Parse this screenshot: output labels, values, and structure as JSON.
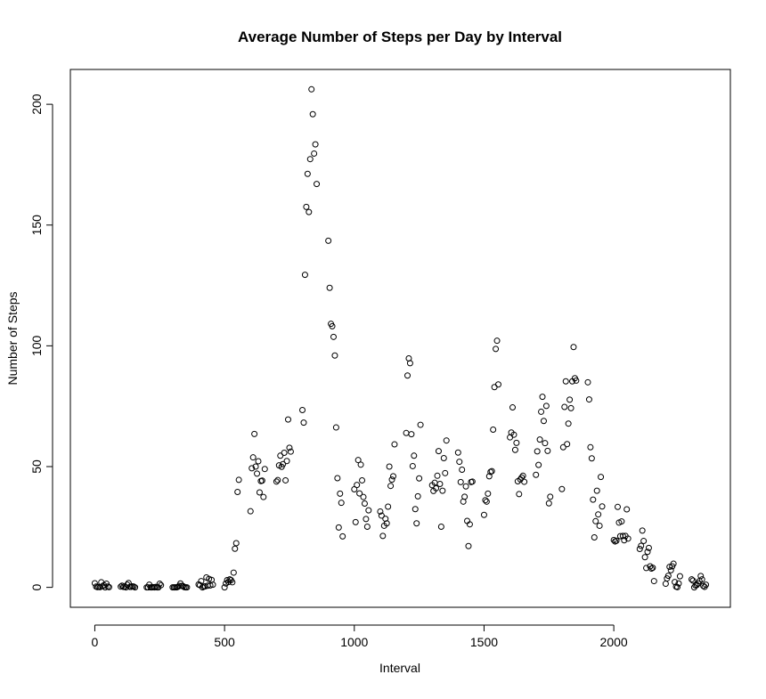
{
  "chart_data": {
    "type": "scatter",
    "title": "Average Number of Steps per Day by Interval",
    "x_label": "Interval",
    "y_label": "Number of Steps",
    "xlim": [
      -94.2,
      2449.2
    ],
    "ylim": [
      -8.25,
      214.42
    ],
    "xticks": [
      0,
      500,
      1000,
      1500,
      2000
    ],
    "yticks": [
      0,
      50,
      100,
      150,
      200
    ],
    "color": "#000000",
    "x": [
      0,
      5,
      10,
      15,
      20,
      25,
      30,
      35,
      40,
      45,
      50,
      55,
      100,
      105,
      110,
      115,
      120,
      125,
      130,
      135,
      140,
      145,
      150,
      155,
      200,
      205,
      210,
      215,
      220,
      225,
      230,
      235,
      240,
      245,
      250,
      255,
      300,
      305,
      310,
      315,
      320,
      325,
      330,
      335,
      340,
      345,
      350,
      355,
      400,
      405,
      410,
      415,
      420,
      425,
      430,
      435,
      440,
      445,
      450,
      455,
      500,
      505,
      510,
      515,
      520,
      525,
      530,
      535,
      540,
      545,
      550,
      555,
      600,
      605,
      610,
      615,
      620,
      625,
      630,
      635,
      640,
      645,
      650,
      655,
      700,
      705,
      710,
      715,
      720,
      725,
      730,
      735,
      740,
      745,
      750,
      755,
      800,
      805,
      810,
      815,
      820,
      825,
      830,
      835,
      840,
      845,
      850,
      855,
      900,
      905,
      910,
      915,
      920,
      925,
      930,
      935,
      940,
      945,
      950,
      955,
      1000,
      1005,
      1010,
      1015,
      1020,
      1025,
      1030,
      1035,
      1040,
      1045,
      1050,
      1055,
      1100,
      1105,
      1110,
      1115,
      1120,
      1125,
      1130,
      1135,
      1140,
      1145,
      1150,
      1155,
      1200,
      1205,
      1210,
      1215,
      1220,
      1225,
      1230,
      1235,
      1240,
      1245,
      1250,
      1255,
      1300,
      1305,
      1310,
      1315,
      1320,
      1325,
      1330,
      1335,
      1340,
      1345,
      1350,
      1355,
      1400,
      1405,
      1410,
      1415,
      1420,
      1425,
      1430,
      1435,
      1440,
      1445,
      1450,
      1455,
      1500,
      1505,
      1510,
      1515,
      1520,
      1525,
      1530,
      1535,
      1540,
      1545,
      1550,
      1555,
      1600,
      1605,
      1610,
      1615,
      1620,
      1625,
      1630,
      1635,
      1640,
      1645,
      1650,
      1655,
      1700,
      1705,
      1710,
      1715,
      1720,
      1725,
      1730,
      1735,
      1740,
      1745,
      1750,
      1755,
      1800,
      1805,
      1810,
      1815,
      1820,
      1825,
      1830,
      1835,
      1840,
      1845,
      1850,
      1855,
      1900,
      1905,
      1910,
      1915,
      1920,
      1925,
      1930,
      1935,
      1940,
      1945,
      1950,
      1955,
      2000,
      2005,
      2010,
      2015,
      2020,
      2025,
      2030,
      2035,
      2040,
      2045,
      2050,
      2055,
      2100,
      2105,
      2110,
      2115,
      2120,
      2125,
      2130,
      2135,
      2140,
      2145,
      2150,
      2155,
      2200,
      2205,
      2210,
      2215,
      2220,
      2225,
      2230,
      2235,
      2240,
      2245,
      2250,
      2255,
      2300,
      2305,
      2310,
      2315,
      2320,
      2325,
      2330,
      2335,
      2340,
      2345,
      2350,
      2355
    ],
    "values": [
      1.7,
      0.3,
      0.1,
      0.2,
      0.1,
      2.1,
      0.5,
      0.9,
      0,
      1.5,
      0.3,
      0.1,
      0.3,
      0.7,
      0.2,
      0.3,
      0,
      1.1,
      1.8,
      0.2,
      0.2,
      0.4,
      0.3,
      0,
      0,
      0,
      1.1,
      0,
      0,
      0.1,
      0,
      0.2,
      0,
      0,
      1.5,
      0.9,
      0,
      0,
      0,
      0,
      0.2,
      0.6,
      1.6,
      0.6,
      0.5,
      0.1,
      0,
      0,
      1.2,
      0.9,
      2.6,
      0,
      0.3,
      0.4,
      4.1,
      0.7,
      3.5,
      0.8,
      3.1,
      1.1,
      0,
      1.6,
      3,
      2.2,
      3.3,
      3,
      2.1,
      6.1,
      16,
      18.3,
      39.5,
      44.5,
      31.5,
      49.3,
      53.8,
      63.5,
      50,
      47.1,
      52.2,
      39.3,
      44,
      44.2,
      37.4,
      49,
      43.8,
      44.4,
      50.5,
      54.5,
      49.9,
      51,
      55.7,
      44.3,
      52.3,
      69.5,
      57.8,
      56.2,
      73.4,
      68.2,
      129.4,
      157.5,
      171.2,
      155.4,
      177.3,
      206.2,
      195.9,
      179.6,
      183.4,
      167,
      143.5,
      124,
      109.1,
      108.1,
      103.7,
      96,
      66.2,
      45.2,
      24.8,
      38.8,
      35,
      21.1,
      40.6,
      27,
      42.4,
      52.7,
      38.9,
      50.8,
      44.3,
      37.4,
      34.7,
      28.3,
      25.1,
      31.9,
      31.4,
      29.7,
      21.3,
      25.5,
      28.4,
      26.5,
      33.4,
      50,
      42,
      44.6,
      46,
      59.2,
      63.9,
      87.7,
      94.8,
      92.8,
      63.4,
      50.2,
      54.5,
      32.4,
      26.5,
      37.7,
      45.1,
      67.3,
      42.3,
      39.9,
      43.3,
      41,
      46.2,
      56.4,
      42.8,
      25.1,
      40,
      53.5,
      47.3,
      60.8,
      55.8,
      52,
      43.6,
      48.7,
      35.5,
      37.5,
      41.8,
      27.5,
      17.1,
      26.1,
      43.6,
      43.8,
      30,
      36.1,
      35.5,
      38.8,
      46,
      47.8,
      48.1,
      65.3,
      82.9,
      98.7,
      102.1,
      84,
      62.1,
      64.1,
      74.5,
      63.2,
      56.9,
      59.8,
      43.9,
      38.6,
      44.7,
      45.5,
      46.2,
      43.7,
      46.6,
      56.3,
      50.7,
      61.2,
      72.7,
      78.9,
      68.9,
      59.7,
      75.1,
      56.5,
      34.8,
      37.5,
      40.7,
      58,
      74.7,
      85.3,
      59.3,
      67.8,
      77.7,
      74.2,
      85.3,
      99.5,
      86.6,
      85.6,
      84.9,
      77.8,
      58,
      53.4,
      36.3,
      20.7,
      27.4,
      40,
      30.2,
      25.5,
      45.7,
      33.5,
      19.6,
      19,
      19.3,
      33.3,
      26.8,
      21.2,
      27.3,
      21.3,
      19.5,
      21.3,
      32.3,
      20.2,
      15.9,
      17.2,
      23.5,
      19.2,
      12.5,
      8,
      14.7,
      16.3,
      8.7,
      7.8,
      8.1,
      2.6,
      1.5,
      3.7,
      4.8,
      8.5,
      7.1,
      8.7,
      9.8,
      2.2,
      0.3,
      0.1,
      1.6,
      4.6,
      3.3,
      2.8,
      0,
      0.8,
      1,
      1.6,
      2.6,
      4.7,
      3.3,
      0.6,
      0.2,
      1.1
    ]
  }
}
